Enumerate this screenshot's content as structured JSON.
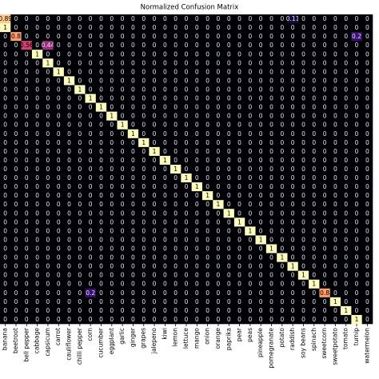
{
  "chart_data": {
    "type": "heatmap",
    "title": "Normalized Confusion Matrix",
    "colormap": "magma",
    "categories": [
      "banana",
      "beetroot",
      "bell pepper",
      "cabbage",
      "capsicum",
      "carrot",
      "cauliflower",
      "chilli pepper",
      "corn",
      "cucumber",
      "eggplant",
      "garlic",
      "ginger",
      "grapes",
      "jalepeno",
      "kiwi",
      "lemon",
      "lettuce",
      "mango",
      "onion",
      "orange",
      "paprika",
      "pear",
      "peas",
      "pineapple",
      "pomegranate",
      "potato",
      "raddish",
      "soy beans",
      "spinach",
      "sweetcorn",
      "sweetpotato",
      "tomato",
      "turnip",
      "watermelon"
    ],
    "matrix": [
      [
        0.89,
        0,
        0,
        0,
        0,
        0,
        0,
        0,
        0,
        0,
        0,
        0,
        0,
        0,
        0,
        0,
        0,
        0,
        0,
        0,
        0,
        0,
        0,
        0,
        0,
        0,
        0,
        0.11,
        0,
        0,
        0,
        0,
        0,
        0,
        0
      ],
      [
        1,
        0,
        0,
        0,
        0,
        0,
        0,
        0,
        0,
        0,
        0,
        0,
        0,
        0,
        0,
        0,
        0,
        0,
        0,
        0,
        0,
        0,
        0,
        0,
        0,
        0,
        0,
        0,
        0,
        0,
        0,
        0,
        0,
        0,
        0
      ],
      [
        0,
        0.8,
        0,
        0,
        0,
        0,
        0,
        0,
        0,
        0,
        0,
        0,
        0,
        0,
        0,
        0,
        0,
        0,
        0,
        0,
        0,
        0,
        0,
        0,
        0,
        0,
        0,
        0,
        0,
        0,
        0,
        0,
        0,
        0.2,
        0
      ],
      [
        0,
        0,
        0.56,
        0,
        0.44,
        0,
        0,
        0,
        0,
        0,
        0,
        0,
        0,
        0,
        0,
        0,
        0,
        0,
        0,
        0,
        0,
        0,
        0,
        0,
        0,
        0,
        0,
        0,
        0,
        0,
        0,
        0,
        0,
        0,
        0
      ],
      [
        0,
        0,
        0,
        1,
        0,
        0,
        0,
        0,
        0,
        0,
        0,
        0,
        0,
        0,
        0,
        0,
        0,
        0,
        0,
        0,
        0,
        0,
        0,
        0,
        0,
        0,
        0,
        0,
        0,
        0,
        0,
        0,
        0,
        0,
        0
      ],
      [
        0,
        0,
        0,
        0,
        1,
        0,
        0,
        0,
        0,
        0,
        0,
        0,
        0,
        0,
        0,
        0,
        0,
        0,
        0,
        0,
        0,
        0,
        0,
        0,
        0,
        0,
        0,
        0,
        0,
        0,
        0,
        0,
        0,
        0,
        0
      ],
      [
        0,
        0,
        0,
        0,
        0,
        1,
        0,
        0,
        0,
        0,
        0,
        0,
        0,
        0,
        0,
        0,
        0,
        0,
        0,
        0,
        0,
        0,
        0,
        0,
        0,
        0,
        0,
        0,
        0,
        0,
        0,
        0,
        0,
        0,
        0
      ],
      [
        0,
        0,
        0,
        0,
        0,
        0,
        1,
        0,
        0,
        0,
        0,
        0,
        0,
        0,
        0,
        0,
        0,
        0,
        0,
        0,
        0,
        0,
        0,
        0,
        0,
        0,
        0,
        0,
        0,
        0,
        0,
        0,
        0,
        0,
        0
      ],
      [
        0,
        0,
        0,
        0,
        0,
        0,
        0,
        1,
        0,
        0,
        0,
        0,
        0,
        0,
        0,
        0,
        0,
        0,
        0,
        0,
        0,
        0,
        0,
        0,
        0,
        0,
        0,
        0,
        0,
        0,
        0,
        0,
        0,
        0,
        0
      ],
      [
        0,
        0,
        0,
        0,
        0,
        0,
        0,
        0,
        1,
        0,
        0,
        0,
        0,
        0,
        0,
        0,
        0,
        0,
        0,
        0,
        0,
        0,
        0,
        0,
        0,
        0,
        0,
        0,
        0,
        0,
        0,
        0,
        0,
        0,
        0
      ],
      [
        0,
        0,
        0,
        0,
        0,
        0,
        0,
        0,
        0,
        1,
        0,
        0,
        0,
        0,
        0,
        0,
        0,
        0,
        0,
        0,
        0,
        0,
        0,
        0,
        0,
        0,
        0,
        0,
        0,
        0,
        0,
        0,
        0,
        0,
        0
      ],
      [
        0,
        0,
        0,
        0,
        0,
        0,
        0,
        0,
        0,
        0,
        1,
        0,
        0,
        0,
        0,
        0,
        0,
        0,
        0,
        0,
        0,
        0,
        0,
        0,
        0,
        0,
        0,
        0,
        0,
        0,
        0,
        0,
        0,
        0,
        0
      ],
      [
        0,
        0,
        0,
        0,
        0,
        0,
        0,
        0,
        0,
        0,
        0,
        1,
        0,
        0,
        0,
        0,
        0,
        0,
        0,
        0,
        0,
        0,
        0,
        0,
        0,
        0,
        0,
        0,
        0,
        0,
        0,
        0,
        0,
        0,
        0
      ],
      [
        0,
        0,
        0,
        0,
        0,
        0,
        0,
        0,
        0,
        0,
        0,
        0,
        1,
        0,
        0,
        0,
        0,
        0,
        0,
        0,
        0,
        0,
        0,
        0,
        0,
        0,
        0,
        0,
        0,
        0,
        0,
        0,
        0,
        0,
        0
      ],
      [
        0,
        0,
        0,
        0,
        0,
        0,
        0,
        0,
        0,
        0,
        0,
        0,
        0,
        1,
        0,
        0,
        0,
        0,
        0,
        0,
        0,
        0,
        0,
        0,
        0,
        0,
        0,
        0,
        0,
        0,
        0,
        0,
        0,
        0,
        0
      ],
      [
        0,
        0,
        0,
        0,
        0,
        0,
        0,
        0,
        0,
        0,
        0,
        0,
        0,
        0,
        1,
        0,
        0,
        0,
        0,
        0,
        0,
        0,
        0,
        0,
        0,
        0,
        0,
        0,
        0,
        0,
        0,
        0,
        0,
        0,
        0
      ],
      [
        0,
        0,
        0,
        0,
        0,
        0,
        0,
        0,
        0,
        0,
        0,
        0,
        0,
        0,
        0,
        1,
        0,
        0,
        0,
        0,
        0,
        0,
        0,
        0,
        0,
        0,
        0,
        0,
        0,
        0,
        0,
        0,
        0,
        0,
        0
      ],
      [
        0,
        0,
        0,
        0,
        0,
        0,
        0,
        0,
        0,
        0,
        0,
        0,
        0,
        0,
        0,
        0,
        1,
        0,
        0,
        0,
        0,
        0,
        0,
        0,
        0,
        0,
        0,
        0,
        0,
        0,
        0,
        0,
        0,
        0,
        0
      ],
      [
        0,
        0,
        0,
        0,
        0,
        0,
        0,
        0,
        0,
        0,
        0,
        0,
        0,
        0,
        0,
        0,
        0,
        1,
        0,
        0,
        0,
        0,
        0,
        0,
        0,
        0,
        0,
        0,
        0,
        0,
        0,
        0,
        0,
        0,
        0
      ],
      [
        0,
        0,
        0,
        0,
        0,
        0,
        0,
        0,
        0,
        0,
        0,
        0,
        0,
        0,
        0,
        0,
        0,
        0,
        1,
        0,
        0,
        0,
        0,
        0,
        0,
        0,
        0,
        0,
        0,
        0,
        0,
        0,
        0,
        0,
        0
      ],
      [
        0,
        0,
        0,
        0,
        0,
        0,
        0,
        0,
        0,
        0,
        0,
        0,
        0,
        0,
        0,
        0,
        0,
        0,
        0,
        1,
        0,
        0,
        0,
        0,
        0,
        0,
        0,
        0,
        0,
        0,
        0,
        0,
        0,
        0,
        0
      ],
      [
        0,
        0,
        0,
        0,
        0,
        0,
        0,
        0,
        0,
        0,
        0,
        0,
        0,
        0,
        0,
        0,
        0,
        0,
        0,
        0,
        1,
        0,
        0,
        0,
        0,
        0,
        0,
        0,
        0,
        0,
        0,
        0,
        0,
        0,
        0
      ],
      [
        0,
        0,
        0,
        0,
        0,
        0,
        0,
        0,
        0,
        0,
        0,
        0,
        0,
        0,
        0,
        0,
        0,
        0,
        0,
        0,
        0,
        1,
        0,
        0,
        0,
        0,
        0,
        0,
        0,
        0,
        0,
        0,
        0,
        0,
        0
      ],
      [
        0,
        0,
        0,
        0,
        0,
        0,
        0,
        0,
        0,
        0,
        0,
        0,
        0,
        0,
        0,
        0,
        0,
        0,
        0,
        0,
        0,
        0,
        1,
        0,
        0,
        0,
        0,
        0,
        0,
        0,
        0,
        0,
        0,
        0,
        0
      ],
      [
        0,
        0,
        0,
        0,
        0,
        0,
        0,
        0,
        0,
        0,
        0,
        0,
        0,
        0,
        0,
        0,
        0,
        0,
        0,
        0,
        0,
        0,
        0,
        1,
        0,
        0,
        0,
        0,
        0,
        0,
        0,
        0,
        0,
        0,
        0
      ],
      [
        0,
        0,
        0,
        0,
        0,
        0,
        0,
        0,
        0,
        0,
        0,
        0,
        0,
        0,
        0,
        0,
        0,
        0,
        0,
        0,
        0,
        0,
        0,
        0,
        1,
        0,
        0,
        0,
        0,
        0,
        0,
        0,
        0,
        0,
        0
      ],
      [
        0,
        0,
        0,
        0,
        0,
        0,
        0,
        0,
        0,
        0,
        0,
        0,
        0,
        0,
        0,
        0,
        0,
        0,
        0,
        0,
        0,
        0,
        0,
        0,
        0,
        1,
        0,
        0,
        0,
        0,
        0,
        0,
        0,
        0,
        0
      ],
      [
        0,
        0,
        0,
        0,
        0,
        0,
        0,
        0,
        0,
        0,
        0,
        0,
        0,
        0,
        0,
        0,
        0,
        0,
        0,
        0,
        0,
        0,
        0,
        0,
        0,
        0,
        1,
        0,
        0,
        0,
        0,
        0,
        0,
        0,
        0
      ],
      [
        0,
        0,
        0,
        0,
        0,
        0,
        0,
        0,
        0,
        0,
        0,
        0,
        0,
        0,
        0,
        0,
        0,
        0,
        0,
        0,
        0,
        0,
        0,
        0,
        0,
        0,
        0,
        1,
        0,
        0,
        0,
        0,
        0,
        0,
        0
      ],
      [
        0,
        0,
        0,
        0,
        0,
        0,
        0,
        0,
        0,
        0,
        0,
        0,
        0,
        0,
        0,
        0,
        0,
        0,
        0,
        0,
        0,
        0,
        0,
        0,
        0,
        0,
        0,
        0,
        1,
        0,
        0,
        0,
        0,
        0,
        0
      ],
      [
        0,
        0,
        0,
        0,
        0,
        0,
        0,
        0,
        0,
        0,
        0,
        0,
        0,
        0,
        0,
        0,
        0,
        0,
        0,
        0,
        0,
        0,
        0,
        0,
        0,
        0,
        0,
        0,
        0,
        1,
        0,
        0,
        0,
        0,
        0
      ],
      [
        0,
        0,
        0,
        0,
        0,
        0,
        0,
        0,
        0.2,
        0,
        0,
        0,
        0,
        0,
        0,
        0,
        0,
        0,
        0,
        0,
        0,
        0,
        0,
        0,
        0,
        0,
        0,
        0,
        0,
        0,
        0.8,
        0,
        0,
        0,
        0
      ],
      [
        0,
        0,
        0,
        0,
        0,
        0,
        0,
        0,
        0,
        0,
        0,
        0,
        0,
        0,
        0,
        0,
        0,
        0,
        0,
        0,
        0,
        0,
        0,
        0,
        0,
        0,
        0,
        0,
        0,
        0,
        0,
        1,
        0,
        0,
        0
      ],
      [
        0,
        0,
        0,
        0,
        0,
        0,
        0,
        0,
        0,
        0,
        0,
        0,
        0,
        0,
        0,
        0,
        0,
        0,
        0,
        0,
        0,
        0,
        0,
        0,
        0,
        0,
        0,
        0,
        0,
        0,
        0,
        0,
        1,
        0,
        0
      ],
      [
        0,
        0,
        0,
        0,
        0,
        0,
        0,
        0,
        0,
        0,
        0,
        0,
        0,
        0,
        0,
        0,
        0,
        0,
        0,
        0,
        0,
        0,
        0,
        0,
        0,
        0,
        0,
        0,
        0,
        0,
        0,
        0,
        0,
        1,
        0
      ]
    ]
  }
}
